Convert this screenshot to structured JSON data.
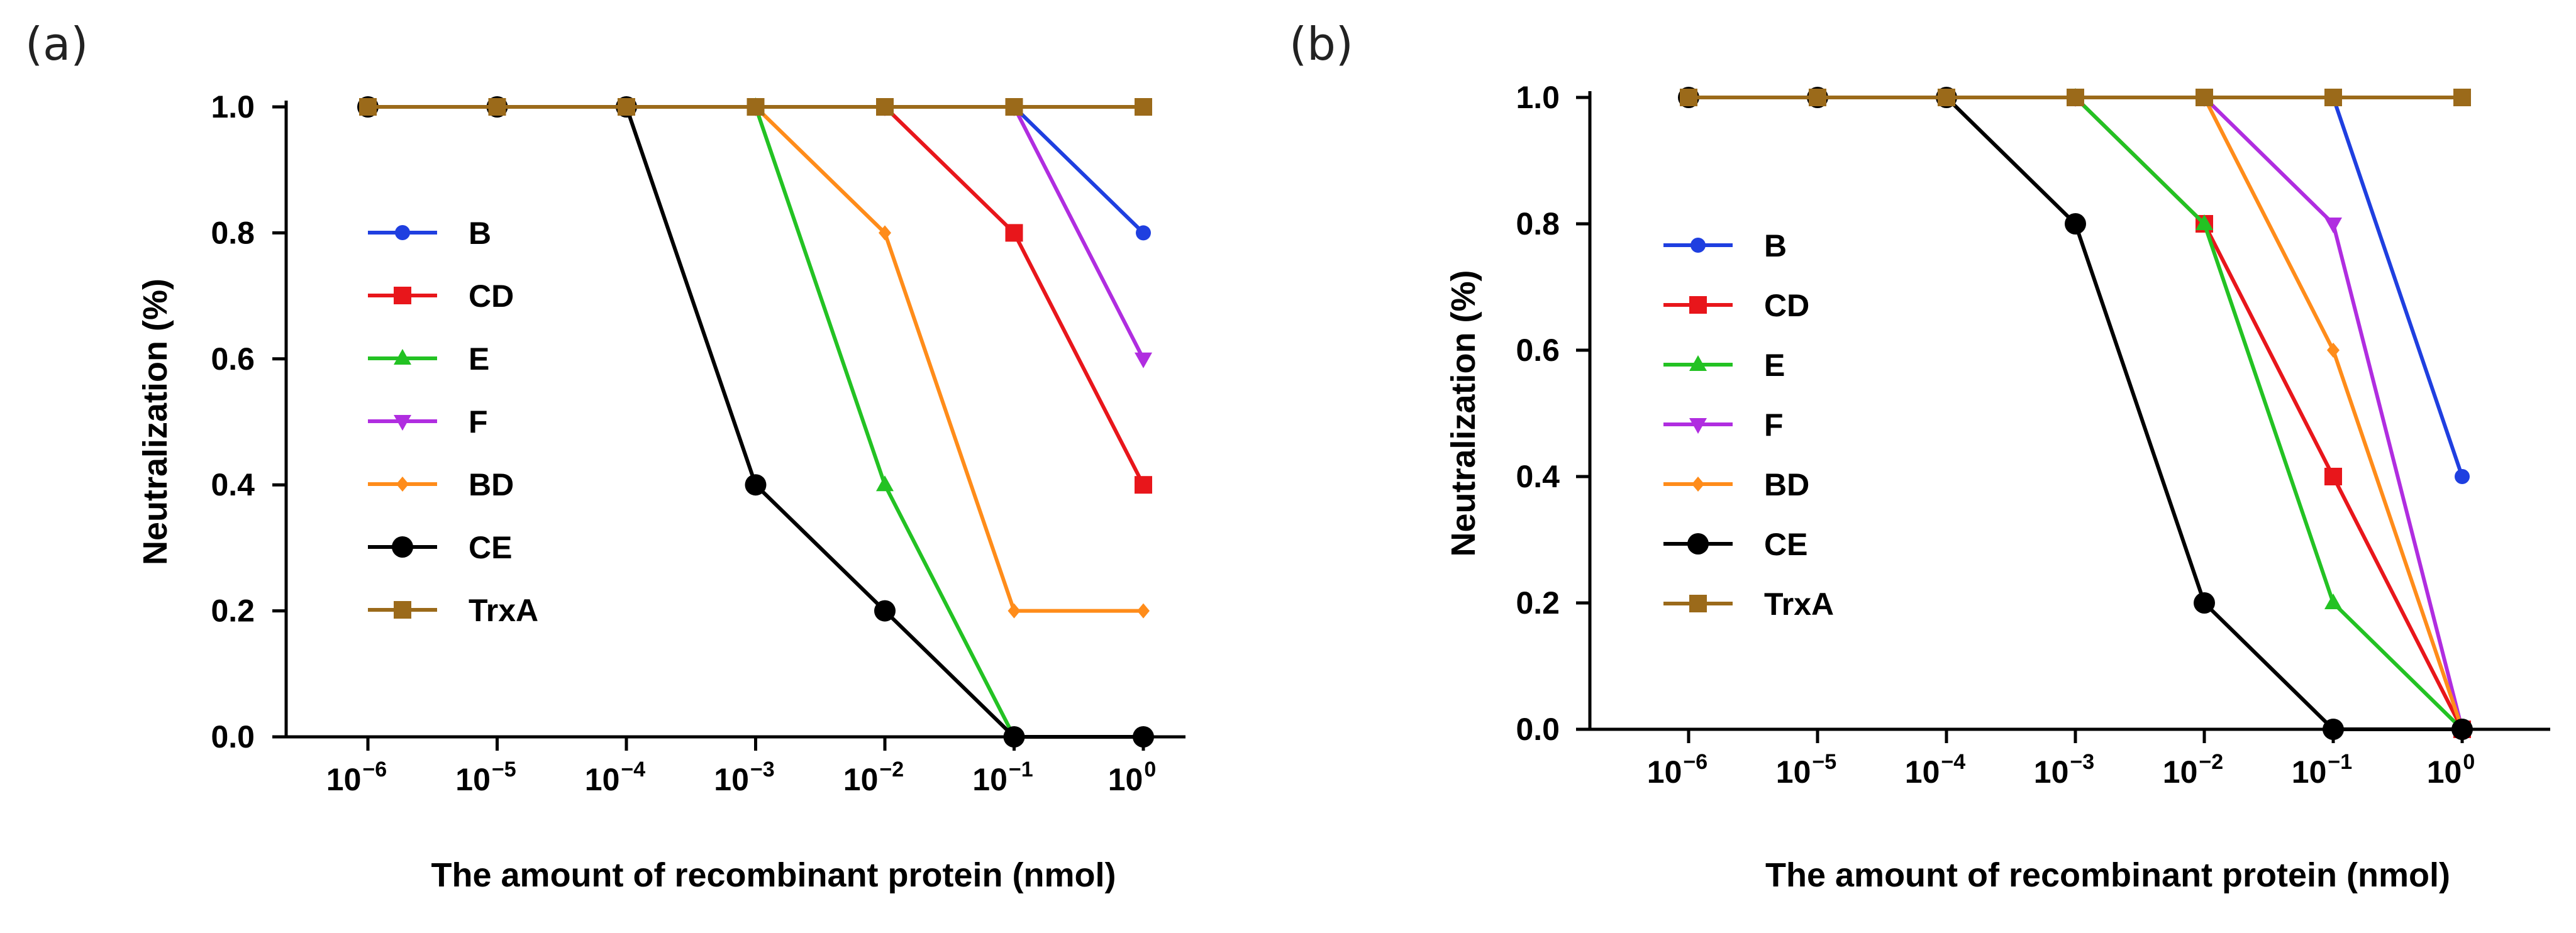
{
  "chart_data": [
    {
      "panel": "(a)",
      "type": "line",
      "xlabel": "The amount of recombinant protein (nmol)",
      "ylabel": "Neutralization (%)",
      "categories": [
        "-6",
        "-5",
        "-4",
        "-3",
        "-2",
        "-1",
        "0"
      ],
      "x_tick_base": "10",
      "ylim": [
        0,
        1.0
      ],
      "yticks": [
        "0.0",
        "0.2",
        "0.4",
        "0.6",
        "0.8",
        "1.0"
      ],
      "series": [
        {
          "name": "B",
          "color": "#1f3fe0",
          "marker": "circle",
          "values": [
            1,
            1,
            1,
            1,
            1,
            1,
            0.8
          ]
        },
        {
          "name": "CD",
          "color": "#e8161b",
          "marker": "square",
          "values": [
            1,
            1,
            1,
            1,
            1,
            0.8,
            0.4
          ]
        },
        {
          "name": "E",
          "color": "#23c223",
          "marker": "triangle-up",
          "values": [
            1,
            1,
            1,
            1,
            0.4,
            0,
            0
          ]
        },
        {
          "name": "F",
          "color": "#b02de0",
          "marker": "triangle-down",
          "values": [
            1,
            1,
            1,
            1,
            1,
            1,
            0.6
          ]
        },
        {
          "name": "BD",
          "color": "#ff8c1a",
          "marker": "diamond",
          "values": [
            1,
            1,
            1,
            1,
            0.8,
            0.2,
            0.2
          ]
        },
        {
          "name": "CE",
          "color": "#000000",
          "marker": "circle-large",
          "values": [
            1,
            1,
            1,
            0.4,
            0.2,
            0,
            0
          ]
        },
        {
          "name": "TrxA",
          "color": "#9b6a1a",
          "marker": "square",
          "values": [
            1,
            1,
            1,
            1,
            1,
            1,
            1
          ]
        }
      ]
    },
    {
      "panel": "(b)",
      "type": "line",
      "xlabel": "The amount of recombinant protein (nmol)",
      "ylabel": "Neutralization (%)",
      "categories": [
        "-6",
        "-5",
        "-4",
        "-3",
        "-2",
        "-1",
        "0"
      ],
      "x_tick_base": "10",
      "ylim": [
        0,
        1.0
      ],
      "yticks": [
        "0.0",
        "0.2",
        "0.4",
        "0.6",
        "0.8",
        "1.0"
      ],
      "series": [
        {
          "name": "B",
          "color": "#1f3fe0",
          "marker": "circle",
          "values": [
            1,
            1,
            1,
            1,
            1,
            1,
            0.4
          ]
        },
        {
          "name": "CD",
          "color": "#e8161b",
          "marker": "square",
          "values": [
            1,
            1,
            1,
            1,
            0.8,
            0.4,
            0
          ]
        },
        {
          "name": "E",
          "color": "#23c223",
          "marker": "triangle-up",
          "values": [
            1,
            1,
            1,
            1,
            0.8,
            0.2,
            0
          ]
        },
        {
          "name": "F",
          "color": "#b02de0",
          "marker": "triangle-down",
          "values": [
            1,
            1,
            1,
            1,
            1,
            0.8,
            0
          ]
        },
        {
          "name": "BD",
          "color": "#ff8c1a",
          "marker": "diamond",
          "values": [
            1,
            1,
            1,
            1,
            1,
            0.6,
            0
          ]
        },
        {
          "name": "CE",
          "color": "#000000",
          "marker": "circle-large",
          "values": [
            1,
            1,
            1,
            0.8,
            0.2,
            0,
            0
          ]
        },
        {
          "name": "TrxA",
          "color": "#9b6a1a",
          "marker": "square",
          "values": [
            1,
            1,
            1,
            1,
            1,
            1,
            1
          ]
        }
      ]
    }
  ]
}
